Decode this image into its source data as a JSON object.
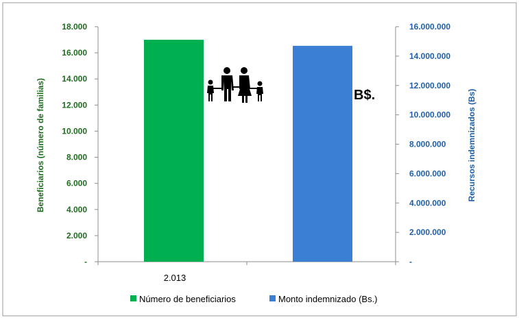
{
  "chart_data": {
    "type": "bar",
    "categories": [
      "2.013"
    ],
    "series": [
      {
        "name": "Número de beneficiarios",
        "axis": "left",
        "values": [
          17000
        ],
        "color": "#00b050"
      },
      {
        "name": "Monto indemnizado  (Bs.)",
        "axis": "right",
        "values": [
          14700000
        ],
        "color": "#3a7fd4"
      }
    ],
    "ylabel_left": "Beneficiarios (número de familias)",
    "ylabel_right": "Recursos indemnizados (Bs)",
    "ylim_left": [
      0,
      18000
    ],
    "ylim_right": [
      0,
      16000000
    ],
    "yticks_left": [
      "-",
      "2.000",
      "4.000",
      "6.000",
      "8.000",
      "10.000",
      "12.000",
      "14.000",
      "16.000",
      "18.000"
    ],
    "yticks_right": [
      "-",
      "2.000.000",
      "4.000.000",
      "6.000.000",
      "8.000.000",
      "10.000.000",
      "12.000.000",
      "14.000.000",
      "16.000.000"
    ],
    "axis_color_left": "#1f6b1f",
    "axis_color_right": "#1f5fa8",
    "grid": false,
    "legend_position": "bottom",
    "annotations": {
      "currency_symbol": "B$.",
      "family_icon": "family-icon"
    }
  }
}
